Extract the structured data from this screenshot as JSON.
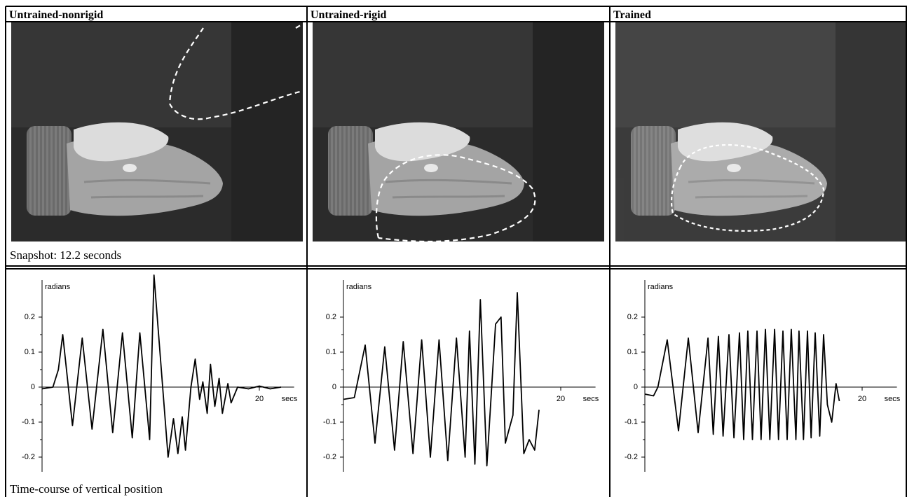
{
  "columns": [
    {
      "title": "Untrained-nonrigid"
    },
    {
      "title": "Untrained-rigid"
    },
    {
      "title": "Trained"
    }
  ],
  "snapshot_caption": "Snapshot: 12.2 seconds",
  "plot_caption": "Time-course of vertical position",
  "chart_data": [
    {
      "type": "line",
      "y_label": "radians",
      "x_label": "secs",
      "color": "#000000",
      "xlim": [
        0,
        23.2
      ],
      "xticks": [
        20
      ],
      "ylim": [
        -0.25,
        0.33
      ],
      "yticks": [
        0.2,
        0.1,
        0,
        -0.1,
        -0.2
      ],
      "x": [
        0,
        1,
        1.5,
        1.9,
        2.8,
        3.7,
        4.6,
        5.6,
        6.5,
        7.4,
        8.3,
        9.0,
        9.9,
        10.3,
        11.6,
        12.1,
        12.5,
        12.9,
        13.2,
        13.7,
        14.1,
        14.5,
        14.8,
        15.2,
        15.5,
        15.9,
        16.3,
        16.6,
        17.1,
        17.4,
        18,
        19,
        20,
        21,
        22
      ],
      "values": [
        -0.005,
        0.0,
        0.05,
        0.15,
        -0.11,
        0.14,
        -0.12,
        0.165,
        -0.13,
        0.155,
        -0.145,
        0.155,
        -0.15,
        0.32,
        -0.2,
        -0.09,
        -0.19,
        -0.085,
        -0.18,
        0.0,
        0.08,
        -0.035,
        0.015,
        -0.075,
        0.065,
        -0.055,
        0.025,
        -0.075,
        0.01,
        -0.045,
        0.0,
        -0.005,
        0.003,
        -0.005,
        0.0
      ]
    },
    {
      "type": "line",
      "y_label": "radians",
      "x_label": "secs",
      "color": "#000000",
      "xlim": [
        0,
        23.2
      ],
      "xticks": [
        20
      ],
      "ylim": [
        -0.25,
        0.33
      ],
      "yticks": [
        0.2,
        0.1,
        0,
        -0.1,
        -0.2
      ],
      "x": [
        0,
        1,
        2.0,
        2.9,
        3.8,
        4.7,
        5.5,
        6.4,
        7.2,
        8.0,
        8.8,
        9.6,
        10.4,
        11.2,
        11.6,
        12.1,
        12.6,
        13.2,
        14.0,
        14.5,
        14.9,
        15.6,
        16.0,
        16.6,
        17.1,
        17.6,
        18.0
      ],
      "values": [
        -0.035,
        -0.03,
        0.12,
        -0.16,
        0.115,
        -0.18,
        0.13,
        -0.19,
        0.135,
        -0.2,
        0.135,
        -0.21,
        0.14,
        -0.2,
        0.16,
        -0.22,
        0.25,
        -0.225,
        0.18,
        0.2,
        -0.16,
        -0.08,
        0.27,
        -0.19,
        -0.15,
        -0.18,
        -0.065
      ]
    },
    {
      "type": "line",
      "y_label": "radians",
      "x_label": "secs",
      "color": "#000000",
      "xlim": [
        0,
        23.2
      ],
      "xticks": [
        20
      ],
      "ylim": [
        -0.25,
        0.33
      ],
      "yticks": [
        0.2,
        0.1,
        0,
        -0.1,
        -0.2
      ],
      "x": [
        0,
        0.8,
        1.2,
        2.06,
        3.1,
        4.0,
        4.9,
        5.81,
        6.3,
        6.77,
        7.2,
        7.74,
        8.2,
        8.71,
        9.1,
        9.48,
        9.9,
        10.32,
        10.7,
        11.1,
        11.5,
        11.94,
        12.3,
        12.71,
        13.1,
        13.48,
        13.9,
        14.19,
        14.6,
        14.97,
        15.3,
        15.68,
        16.1,
        16.45,
        16.8,
        17.2,
        17.6,
        17.9
      ],
      "values": [
        -0.02,
        -0.025,
        0.0,
        0.135,
        -0.125,
        0.14,
        -0.13,
        0.14,
        -0.135,
        0.145,
        -0.14,
        0.15,
        -0.145,
        0.155,
        -0.15,
        0.16,
        -0.15,
        0.16,
        -0.15,
        0.165,
        -0.15,
        0.165,
        -0.15,
        0.16,
        -0.15,
        0.165,
        -0.15,
        0.16,
        -0.15,
        0.16,
        -0.145,
        0.155,
        -0.14,
        0.15,
        -0.05,
        -0.1,
        0.01,
        -0.04
      ]
    }
  ]
}
